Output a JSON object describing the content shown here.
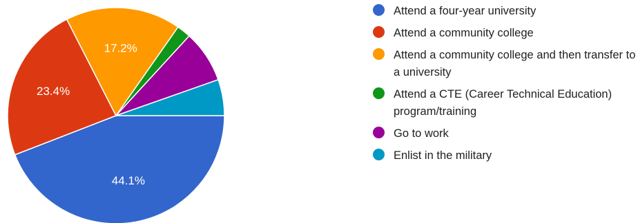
{
  "chart_data": {
    "type": "pie",
    "slices": [
      {
        "label": "Attend a four-year university",
        "value": 44.1,
        "color": "#3366cc",
        "label_text": "44.1%"
      },
      {
        "label": "Attend a community college",
        "value": 23.4,
        "color": "#dc3912",
        "label_text": "23.4%"
      },
      {
        "label": "Attend a community college and then transfer to a university",
        "value": 17.2,
        "color": "#ff9900",
        "label_text": "17.2%"
      },
      {
        "label": "Attend a CTE (Career Technical Education) program/training",
        "value": 2.1,
        "color": "#109618",
        "label_text": ""
      },
      {
        "label": "Go to work",
        "value": 7.8,
        "color": "#990099",
        "label_text": ""
      },
      {
        "label": "Enlist in the military",
        "value": 5.4,
        "color": "#0099c6",
        "label_text": ""
      }
    ],
    "legend_position": "right",
    "start_angle": "3 o'clock, clockwise"
  },
  "legend": {
    "items": [
      {
        "text": "Attend a four-year university",
        "color": "#3366cc"
      },
      {
        "text": "Attend a community college",
        "color": "#dc3912"
      },
      {
        "text": "Attend a community college and then transfer to a university",
        "color": "#ff9900"
      },
      {
        "text": "Attend a CTE (Career Technical Education) program/training",
        "color": "#109618"
      },
      {
        "text": "Go to work",
        "color": "#990099"
      },
      {
        "text": "Enlist in the military",
        "color": "#0099c6"
      }
    ]
  }
}
